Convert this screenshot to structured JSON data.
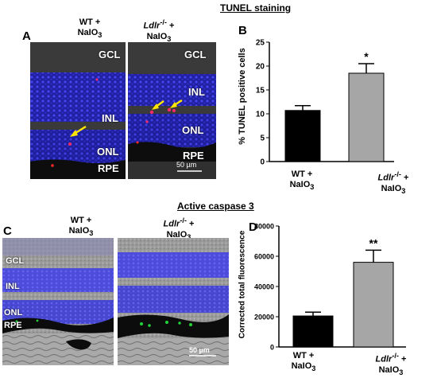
{
  "tunel": {
    "title": "TUNEL staining",
    "panel_a": "A",
    "panel_b": "B",
    "wt_line1": "WT +",
    "wt_line2": "NaIO",
    "wt_sub": "3",
    "ko_gene": "Ldlr",
    "ko_sup": "-/-",
    "ko_plus": " +",
    "ko_line2": "NaIO",
    "ko_sub": "3",
    "layers_wt": [
      "GCL",
      "INL",
      "ONL",
      "RPE"
    ],
    "layers_ko": [
      "GCL",
      "INL",
      "ONL",
      "RPE"
    ],
    "scale_bar": "50 µm"
  },
  "caspase": {
    "title": "Active caspase 3",
    "panel_c": "C",
    "panel_d": "D",
    "wt_line1": "WT +",
    "wt_line2": "NaIO",
    "wt_sub": "3",
    "ko_gene": "Ldlr",
    "ko_sup": "-/-",
    "ko_plus": " +",
    "ko_line2": "NaIO",
    "ko_sub": "3",
    "layers_wt": [
      "GCL",
      "INL",
      "ONL",
      "RPE"
    ],
    "scale_bar": "50 µm"
  },
  "colors": {
    "wt_bar": "#000000",
    "ko_bar": "#a6a6a6",
    "nuclei": "#3a3ad6",
    "tunel_signal": "#ff2a6a",
    "caspase_signal": "#22d23a",
    "arrow": "#ffe600"
  },
  "chart_data": [
    {
      "type": "bar",
      "panel": "B",
      "categories": [
        "WT + NaIO3",
        "Ldlr-/- + NaIO3"
      ],
      "values": [
        10.7,
        18.5
      ],
      "errors": [
        1.0,
        2.0
      ],
      "significance": [
        "",
        "*"
      ],
      "ylabel": "% TUNEL positive cells",
      "ylim": [
        0,
        25
      ],
      "yticks": [
        0,
        5,
        10,
        15,
        20,
        25
      ]
    },
    {
      "type": "bar",
      "panel": "D",
      "categories": [
        "WT + NaIO3",
        "Ldlr-/- + NaIO3"
      ],
      "values": [
        20500,
        56000
      ],
      "errors": [
        2500,
        8000
      ],
      "significance": [
        "",
        "**"
      ],
      "ylabel": "Corrected total fluorescence",
      "ylim": [
        0,
        80000
      ],
      "yticks": [
        0,
        20000,
        40000,
        60000,
        80000
      ]
    }
  ]
}
